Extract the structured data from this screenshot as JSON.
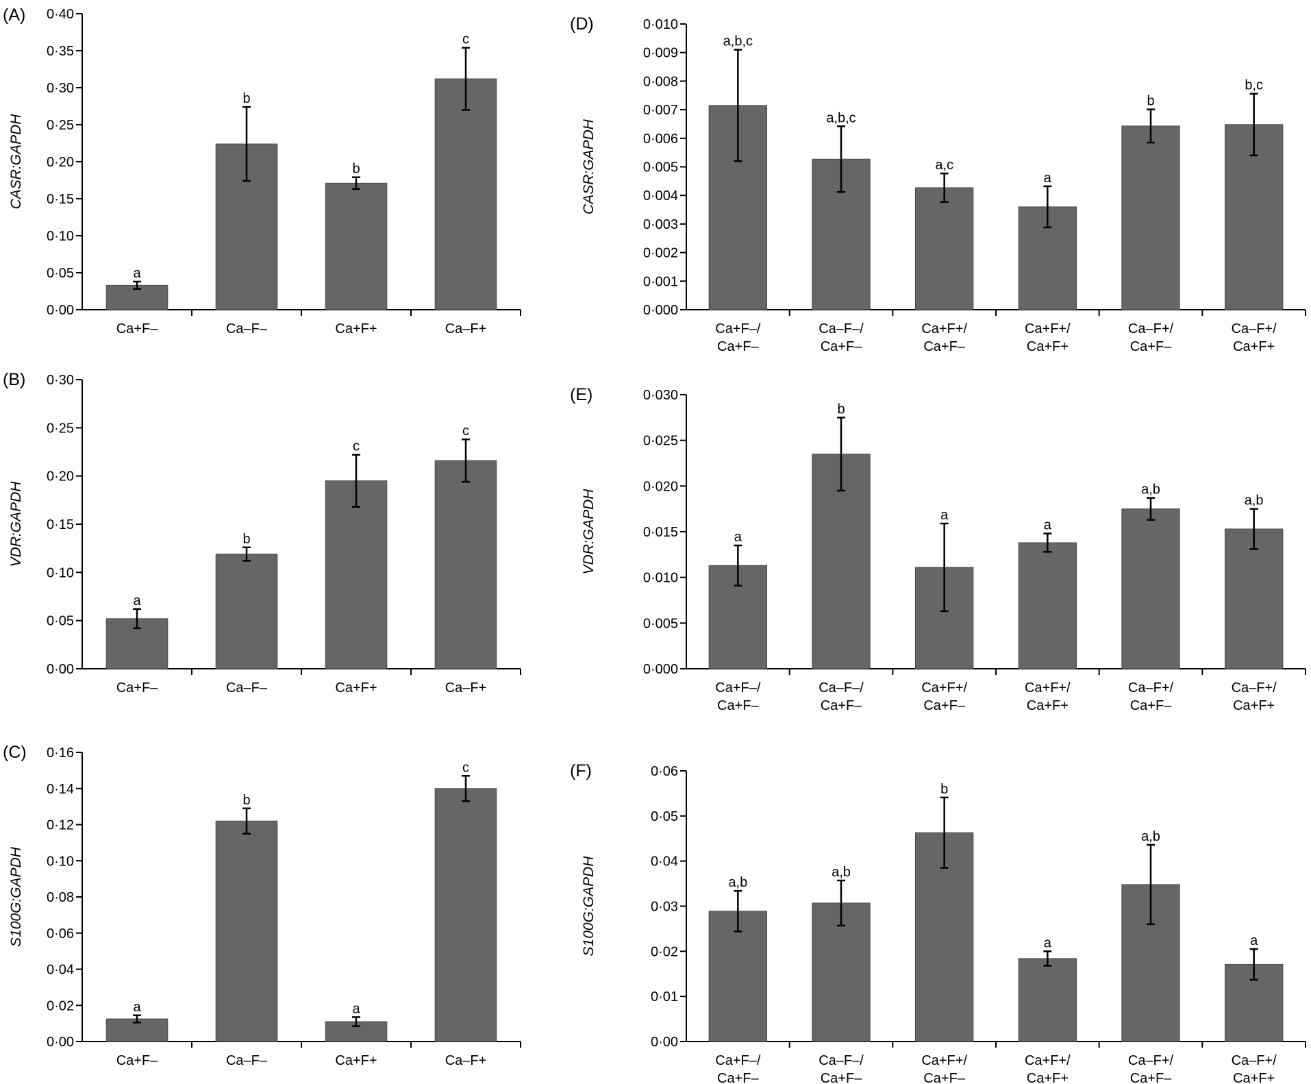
{
  "figure": {
    "description_label": "Six-panel bar chart figure"
  },
  "chart_data": [
    {
      "panel": "(A)",
      "type": "bar",
      "ylabel": "CASR:GAPDH",
      "xlabel": "",
      "ylim": [
        0,
        0.4
      ],
      "yticks": [
        "0·00",
        "0·05",
        "0·10",
        "0·15",
        "0·20",
        "0·25",
        "0·30",
        "0·35",
        "0·40"
      ],
      "categories": [
        [
          "Ca+F–"
        ],
        [
          "Ca–F–"
        ],
        [
          "Ca+F+"
        ],
        [
          "Ca–F+"
        ]
      ],
      "values": [
        0.033,
        0.224,
        0.171,
        0.312
      ],
      "errors": [
        0.005,
        0.05,
        0.008,
        0.042
      ],
      "labels": [
        "a",
        "b",
        "b",
        "c"
      ]
    },
    {
      "panel": "(B)",
      "type": "bar",
      "ylabel": "VDR:GAPDH",
      "xlabel": "",
      "ylim": [
        0,
        0.3
      ],
      "yticks": [
        "0·00",
        "0·05",
        "0·10",
        "0·15",
        "0·20",
        "0·25",
        "0·30"
      ],
      "categories": [
        [
          "Ca+F–"
        ],
        [
          "Ca–F–"
        ],
        [
          "Ca+F+"
        ],
        [
          "Ca–F+"
        ]
      ],
      "values": [
        0.052,
        0.119,
        0.195,
        0.216
      ],
      "errors": [
        0.01,
        0.007,
        0.027,
        0.022
      ],
      "labels": [
        "a",
        "b",
        "c",
        "c"
      ]
    },
    {
      "panel": "(C)",
      "type": "bar",
      "ylabel": "S100G:GAPDH",
      "xlabel": "",
      "ylim": [
        0,
        0.16
      ],
      "yticks": [
        "0·00",
        "0·02",
        "0·04",
        "0·06",
        "0·08",
        "0·10",
        "0·12",
        "0·14",
        "0·16"
      ],
      "categories": [
        [
          "Ca+F–"
        ],
        [
          "Ca–F–"
        ],
        [
          "Ca+F+"
        ],
        [
          "Ca–F+"
        ]
      ],
      "values": [
        0.0125,
        0.122,
        0.011,
        0.14
      ],
      "errors": [
        0.002,
        0.007,
        0.0025,
        0.007
      ],
      "labels": [
        "a",
        "b",
        "a",
        "c"
      ]
    },
    {
      "panel": "(D)",
      "type": "bar",
      "ylabel": "CASR:GAPDH",
      "xlabel": "",
      "ylim": [
        0,
        0.01
      ],
      "yticks": [
        "0·000",
        "0·001",
        "0·002",
        "0·003",
        "0·004",
        "0·005",
        "0·006",
        "0·007",
        "0·008",
        "0·009",
        "0·010"
      ],
      "categories": [
        [
          "Ca+F–/",
          "Ca+F–"
        ],
        [
          "Ca–F–/",
          "Ca+F–"
        ],
        [
          "Ca+F+/",
          "Ca+F–"
        ],
        [
          "Ca+F+/",
          "Ca+F+"
        ],
        [
          "Ca–F+/",
          "Ca+F–"
        ],
        [
          "Ca–F+/",
          "Ca+F+"
        ]
      ],
      "values": [
        0.00715,
        0.00527,
        0.00427,
        0.0036,
        0.00643,
        0.00648
      ],
      "errors": [
        0.00195,
        0.00115,
        0.0005,
        0.00072,
        0.00058,
        0.00108
      ],
      "labels": [
        "a,b,c",
        "a,b,c",
        "a,c",
        "a",
        "b",
        "b,c"
      ]
    },
    {
      "panel": "(E)",
      "type": "bar",
      "ylabel": "VDR:GAPDH",
      "xlabel": "",
      "ylim": [
        0,
        0.03
      ],
      "yticks": [
        "0·000",
        "0·005",
        "0·010",
        "0·015",
        "0·020",
        "0·025",
        "0·030"
      ],
      "categories": [
        [
          "Ca+F–/",
          "Ca+F–"
        ],
        [
          "Ca–F–/",
          "Ca+F–"
        ],
        [
          "Ca+F+/",
          "Ca+F–"
        ],
        [
          "Ca+F+/",
          "Ca+F+"
        ],
        [
          "Ca–F+/",
          "Ca+F–"
        ],
        [
          "Ca–F+/",
          "Ca+F+"
        ]
      ],
      "values": [
        0.0113,
        0.0235,
        0.0111,
        0.0138,
        0.0175,
        0.0153
      ],
      "errors": [
        0.0022,
        0.004,
        0.0048,
        0.001,
        0.0012,
        0.0022
      ],
      "labels": [
        "a",
        "b",
        "a",
        "a",
        "a,b",
        "a,b"
      ]
    },
    {
      "panel": "(F)",
      "type": "bar",
      "ylabel": "S100G:GAPDH",
      "xlabel": "",
      "ylim": [
        0,
        0.06
      ],
      "yticks": [
        "0·00",
        "0·01",
        "0·02",
        "0·03",
        "0·04",
        "0·05",
        "0·06"
      ],
      "categories": [
        [
          "Ca+F–/",
          "Ca+F–"
        ],
        [
          "Ca–F–/",
          "Ca+F–"
        ],
        [
          "Ca+F+/",
          "Ca+F–"
        ],
        [
          "Ca+F+/",
          "Ca+F+"
        ],
        [
          "Ca–F+/",
          "Ca+F–"
        ],
        [
          "Ca–F+/",
          "Ca+F+"
        ]
      ],
      "values": [
        0.0289,
        0.0307,
        0.0463,
        0.0184,
        0.0348,
        0.0171
      ],
      "errors": [
        0.0045,
        0.005,
        0.0078,
        0.0016,
        0.0088,
        0.0034
      ],
      "labels": [
        "a,b",
        "a,b",
        "b",
        "a",
        "a,b",
        "a"
      ]
    }
  ]
}
